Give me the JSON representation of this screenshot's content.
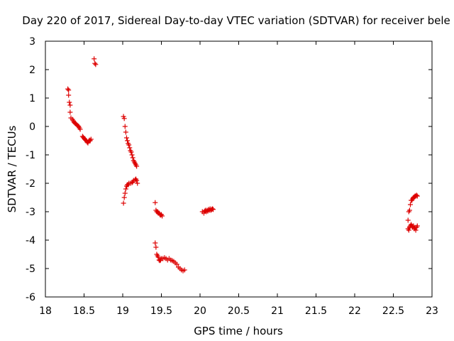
{
  "chart_data": {
    "type": "scatter",
    "title": "Day 220 of 2017, Sidereal Day-to-day VTEC variation (SDTVAR) for receiver bele",
    "xlabel": "GPS time / hours",
    "ylabel": "SDTVAR / TECUs",
    "xlim": [
      18,
      23
    ],
    "ylim": [
      -6,
      3
    ],
    "xticks": [
      "18",
      "18.5",
      "19",
      "19.5",
      "20",
      "20.5",
      "21",
      "21.5",
      "22",
      "22.5",
      "23"
    ],
    "yticks": [
      "3",
      "2",
      "1",
      "0",
      "-1",
      "-2",
      "-3",
      "-4",
      "-5",
      "-6"
    ],
    "grid": false,
    "marker": "+",
    "colors": {
      "series": "#dd0000",
      "axes": "#000000"
    },
    "series": [
      {
        "name": "SDTVAR",
        "points": [
          [
            18.29,
            1.32
          ],
          [
            18.3,
            1.28
          ],
          [
            18.3,
            1.1
          ],
          [
            18.31,
            0.85
          ],
          [
            18.32,
            0.75
          ],
          [
            18.32,
            0.5
          ],
          [
            18.33,
            0.3
          ],
          [
            18.35,
            0.25
          ],
          [
            18.36,
            0.2
          ],
          [
            18.37,
            0.15
          ],
          [
            18.38,
            0.12
          ],
          [
            18.39,
            0.1
          ],
          [
            18.4,
            0.08
          ],
          [
            18.41,
            0.05
          ],
          [
            18.42,
            0.02
          ],
          [
            18.43,
            0.0
          ],
          [
            18.44,
            -0.05
          ],
          [
            18.45,
            -0.1
          ],
          [
            18.48,
            -0.35
          ],
          [
            18.49,
            -0.38
          ],
          [
            18.5,
            -0.42
          ],
          [
            18.51,
            -0.45
          ],
          [
            18.52,
            -0.48
          ],
          [
            18.53,
            -0.5
          ],
          [
            18.54,
            -0.55
          ],
          [
            18.55,
            -0.58
          ],
          [
            18.56,
            -0.52
          ],
          [
            18.57,
            -0.48
          ],
          [
            18.58,
            -0.5
          ],
          [
            18.59,
            -0.45
          ],
          [
            18.63,
            2.38
          ],
          [
            18.64,
            2.22
          ],
          [
            18.65,
            2.18
          ],
          [
            19.01,
            0.35
          ],
          [
            19.02,
            0.28
          ],
          [
            19.03,
            0.0
          ],
          [
            19.04,
            -0.2
          ],
          [
            19.05,
            -0.4
          ],
          [
            19.06,
            -0.5
          ],
          [
            19.07,
            -0.6
          ],
          [
            19.08,
            -0.65
          ],
          [
            19.09,
            -0.75
          ],
          [
            19.1,
            -0.85
          ],
          [
            19.11,
            -0.9
          ],
          [
            19.12,
            -1.0
          ],
          [
            19.13,
            -1.1
          ],
          [
            19.14,
            -1.2
          ],
          [
            19.15,
            -1.25
          ],
          [
            19.16,
            -1.3
          ],
          [
            19.17,
            -1.35
          ],
          [
            19.18,
            -1.4
          ],
          [
            19.01,
            -2.7
          ],
          [
            19.02,
            -2.5
          ],
          [
            19.03,
            -2.35
          ],
          [
            19.04,
            -2.2
          ],
          [
            19.05,
            -2.1
          ],
          [
            19.06,
            -2.05
          ],
          [
            19.07,
            -2.05
          ],
          [
            19.08,
            -2.0
          ],
          [
            19.1,
            -2.0
          ],
          [
            19.12,
            -1.98
          ],
          [
            19.13,
            -1.95
          ],
          [
            19.14,
            -1.9
          ],
          [
            19.16,
            -1.88
          ],
          [
            19.17,
            -1.85
          ],
          [
            19.18,
            -1.9
          ],
          [
            19.19,
            -2.0
          ],
          [
            19.42,
            -2.68
          ],
          [
            19.43,
            -2.95
          ],
          [
            19.44,
            -3.0
          ],
          [
            19.45,
            -3.0
          ],
          [
            19.46,
            -3.05
          ],
          [
            19.47,
            -3.05
          ],
          [
            19.48,
            -3.1
          ],
          [
            19.49,
            -3.12
          ],
          [
            19.5,
            -3.1
          ],
          [
            19.51,
            -3.15
          ],
          [
            19.42,
            -4.1
          ],
          [
            19.43,
            -4.25
          ],
          [
            19.44,
            -4.5
          ],
          [
            19.45,
            -4.55
          ],
          [
            19.46,
            -4.6
          ],
          [
            19.47,
            -4.7
          ],
          [
            19.48,
            -4.72
          ],
          [
            19.49,
            -4.7
          ],
          [
            19.5,
            -4.65
          ],
          [
            19.52,
            -4.65
          ],
          [
            19.54,
            -4.62
          ],
          [
            19.56,
            -4.65
          ],
          [
            19.58,
            -4.7
          ],
          [
            19.6,
            -4.65
          ],
          [
            19.62,
            -4.7
          ],
          [
            19.64,
            -4.72
          ],
          [
            19.66,
            -4.75
          ],
          [
            19.68,
            -4.8
          ],
          [
            19.7,
            -4.85
          ],
          [
            19.72,
            -4.95
          ],
          [
            19.74,
            -5.0
          ],
          [
            19.76,
            -5.05
          ],
          [
            19.78,
            -5.08
          ],
          [
            19.8,
            -5.05
          ],
          [
            20.03,
            -3.0
          ],
          [
            20.05,
            -3.05
          ],
          [
            20.06,
            -2.98
          ],
          [
            20.07,
            -2.95
          ],
          [
            20.08,
            -3.0
          ],
          [
            20.09,
            -2.95
          ],
          [
            20.1,
            -2.98
          ],
          [
            20.11,
            -2.92
          ],
          [
            20.12,
            -2.95
          ],
          [
            20.13,
            -2.9
          ],
          [
            20.14,
            -2.95
          ],
          [
            20.15,
            -2.92
          ],
          [
            20.16,
            -2.9
          ],
          [
            20.17,
            -2.92
          ],
          [
            22.69,
            -3.3
          ],
          [
            22.7,
            -3.0
          ],
          [
            22.71,
            -2.95
          ],
          [
            22.72,
            -2.75
          ],
          [
            22.73,
            -2.6
          ],
          [
            22.74,
            -2.6
          ],
          [
            22.75,
            -2.55
          ],
          [
            22.76,
            -2.5
          ],
          [
            22.77,
            -2.48
          ],
          [
            22.78,
            -2.45
          ],
          [
            22.79,
            -2.45
          ],
          [
            22.8,
            -2.42
          ],
          [
            22.81,
            -2.45
          ],
          [
            22.69,
            -3.6
          ],
          [
            22.7,
            -3.65
          ],
          [
            22.71,
            -3.55
          ],
          [
            22.72,
            -3.5
          ],
          [
            22.73,
            -3.45
          ],
          [
            22.74,
            -3.5
          ],
          [
            22.75,
            -3.55
          ],
          [
            22.76,
            -3.5
          ],
          [
            22.77,
            -3.6
          ],
          [
            22.78,
            -3.55
          ],
          [
            22.79,
            -3.65
          ],
          [
            22.8,
            -3.55
          ],
          [
            22.81,
            -3.5
          ]
        ]
      }
    ]
  }
}
